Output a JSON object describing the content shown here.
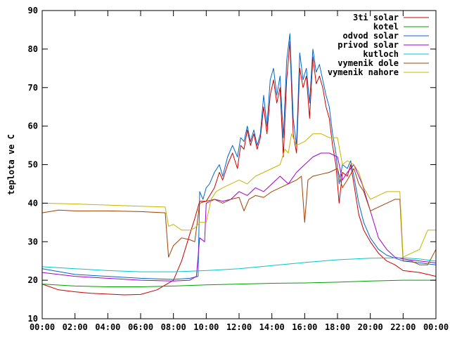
{
  "chart_data": {
    "type": "line",
    "title": "",
    "xlabel": "",
    "ylabel": "teplota ve C",
    "ylim": [
      10,
      90
    ],
    "yticks": [
      10,
      20,
      30,
      40,
      50,
      60,
      70,
      80,
      90
    ],
    "xlim": [
      0,
      24
    ],
    "xticks": [
      {
        "v": 0,
        "label": "00:00"
      },
      {
        "v": 2,
        "label": "02:00"
      },
      {
        "v": 4,
        "label": "04:00"
      },
      {
        "v": 6,
        "label": "06:00"
      },
      {
        "v": 8,
        "label": "08:00"
      },
      {
        "v": 10,
        "label": "10:00"
      },
      {
        "v": 12,
        "label": "12:00"
      },
      {
        "v": 14,
        "label": "14:00"
      },
      {
        "v": 16,
        "label": "16:00"
      },
      {
        "v": 18,
        "label": "18:00"
      },
      {
        "v": 20,
        "label": "20:00"
      },
      {
        "v": 22,
        "label": "22:00"
      },
      {
        "v": 24,
        "label": "00:00"
      }
    ],
    "grid": false,
    "legend_position": "top-right",
    "series": [
      {
        "name": "3ti solar",
        "color": "#cc0000",
        "points": [
          [
            0,
            19
          ],
          [
            1,
            17.5
          ],
          [
            2,
            17
          ],
          [
            3,
            16.6
          ],
          [
            4,
            16.4
          ],
          [
            5,
            16.2
          ],
          [
            6,
            16.3
          ],
          [
            7,
            17.5
          ],
          [
            8,
            20
          ],
          [
            8.5,
            25
          ],
          [
            9,
            32
          ],
          [
            9.3,
            36
          ],
          [
            9.6,
            40.5
          ],
          [
            10,
            40.5
          ],
          [
            10.5,
            44
          ],
          [
            10.8,
            48
          ],
          [
            11,
            46
          ],
          [
            11.3,
            50
          ],
          [
            11.6,
            53
          ],
          [
            11.9,
            49
          ],
          [
            12.1,
            55
          ],
          [
            12.3,
            54
          ],
          [
            12.5,
            59
          ],
          [
            12.7,
            55
          ],
          [
            12.9,
            58
          ],
          [
            13.1,
            54
          ],
          [
            13.3,
            57
          ],
          [
            13.5,
            65
          ],
          [
            13.7,
            58
          ],
          [
            13.9,
            68
          ],
          [
            14.1,
            72
          ],
          [
            14.3,
            66
          ],
          [
            14.5,
            70
          ],
          [
            14.7,
            52
          ],
          [
            14.9,
            72
          ],
          [
            15.1,
            82
          ],
          [
            15.3,
            58
          ],
          [
            15.5,
            53
          ],
          [
            15.7,
            75
          ],
          [
            15.9,
            70
          ],
          [
            16.1,
            73
          ],
          [
            16.3,
            62
          ],
          [
            16.5,
            78
          ],
          [
            16.7,
            71
          ],
          [
            16.9,
            73
          ],
          [
            17.1,
            70
          ],
          [
            17.3,
            65
          ],
          [
            17.5,
            62
          ],
          [
            17.7,
            55
          ],
          [
            17.9,
            50
          ],
          [
            18.1,
            40
          ],
          [
            18.3,
            48
          ],
          [
            18.6,
            47
          ],
          [
            18.8,
            50
          ],
          [
            19,
            45
          ],
          [
            19.3,
            37
          ],
          [
            19.6,
            33
          ],
          [
            20,
            30
          ],
          [
            20.5,
            27
          ],
          [
            21,
            25
          ],
          [
            21.5,
            24
          ],
          [
            22,
            22.5
          ],
          [
            23,
            22
          ],
          [
            24,
            21
          ]
        ]
      },
      {
        "name": "kotel",
        "color": "#00a000",
        "points": [
          [
            0,
            19
          ],
          [
            2,
            18.5
          ],
          [
            4,
            18.3
          ],
          [
            6,
            18.3
          ],
          [
            8,
            18.5
          ],
          [
            10,
            18.8
          ],
          [
            12,
            19
          ],
          [
            14,
            19.2
          ],
          [
            16,
            19.3
          ],
          [
            18,
            19.5
          ],
          [
            20,
            19.8
          ],
          [
            22,
            20
          ],
          [
            24,
            20
          ]
        ]
      },
      {
        "name": "odvod solar",
        "color": "#0066cc",
        "points": [
          [
            0,
            23
          ],
          [
            2,
            21.5
          ],
          [
            4,
            21
          ],
          [
            6,
            20.5
          ],
          [
            8,
            20.2
          ],
          [
            9,
            20.5
          ],
          [
            9.5,
            21
          ],
          [
            9.6,
            43
          ],
          [
            9.8,
            41
          ],
          [
            10,
            44
          ],
          [
            10.2,
            45
          ],
          [
            10.5,
            48
          ],
          [
            10.8,
            50
          ],
          [
            11,
            47
          ],
          [
            11.3,
            52
          ],
          [
            11.6,
            55
          ],
          [
            11.9,
            52
          ],
          [
            12.1,
            57
          ],
          [
            12.3,
            56
          ],
          [
            12.5,
            60
          ],
          [
            12.7,
            56
          ],
          [
            12.9,
            59
          ],
          [
            13.1,
            55
          ],
          [
            13.3,
            58
          ],
          [
            13.5,
            68
          ],
          [
            13.7,
            60
          ],
          [
            13.9,
            72
          ],
          [
            14.1,
            75
          ],
          [
            14.3,
            68
          ],
          [
            14.5,
            73
          ],
          [
            14.7,
            57
          ],
          [
            14.9,
            77
          ],
          [
            15.1,
            84
          ],
          [
            15.3,
            62
          ],
          [
            15.5,
            55
          ],
          [
            15.7,
            79
          ],
          [
            15.9,
            72
          ],
          [
            16.1,
            75
          ],
          [
            16.3,
            66
          ],
          [
            16.5,
            80
          ],
          [
            16.7,
            74
          ],
          [
            16.9,
            76
          ],
          [
            17.1,
            72
          ],
          [
            17.3,
            68
          ],
          [
            17.5,
            65
          ],
          [
            17.7,
            58
          ],
          [
            17.9,
            53
          ],
          [
            18.1,
            45
          ],
          [
            18.3,
            50
          ],
          [
            18.6,
            49
          ],
          [
            18.8,
            51
          ],
          [
            19,
            47
          ],
          [
            19.3,
            40
          ],
          [
            19.6,
            35
          ],
          [
            20,
            31
          ],
          [
            20.5,
            28
          ],
          [
            21,
            26.5
          ],
          [
            22,
            25
          ],
          [
            23,
            24.5
          ],
          [
            24,
            24
          ]
        ]
      },
      {
        "name": "privod solar",
        "color": "#a000d0",
        "points": [
          [
            0,
            22
          ],
          [
            2,
            21
          ],
          [
            4,
            20.5
          ],
          [
            6,
            20
          ],
          [
            8,
            19.8
          ],
          [
            9,
            20
          ],
          [
            9.4,
            21
          ],
          [
            9.6,
            31
          ],
          [
            9.9,
            30
          ],
          [
            10,
            40
          ],
          [
            10.5,
            41
          ],
          [
            11,
            40.5
          ],
          [
            11.5,
            41
          ],
          [
            12,
            43
          ],
          [
            12.5,
            42
          ],
          [
            13,
            44
          ],
          [
            13.5,
            43
          ],
          [
            14,
            45
          ],
          [
            14.5,
            47
          ],
          [
            15,
            45
          ],
          [
            15.5,
            48
          ],
          [
            16,
            50
          ],
          [
            16.5,
            52
          ],
          [
            17,
            53
          ],
          [
            17.5,
            53
          ],
          [
            18,
            52
          ],
          [
            18.3,
            46
          ],
          [
            18.6,
            48
          ],
          [
            19,
            50
          ],
          [
            19.5,
            45
          ],
          [
            20,
            38
          ],
          [
            20.5,
            31
          ],
          [
            21,
            28
          ],
          [
            21.5,
            26
          ],
          [
            22,
            25.5
          ],
          [
            23,
            25
          ],
          [
            24,
            24.5
          ]
        ]
      },
      {
        "name": "kutloch",
        "color": "#00c8c8",
        "points": [
          [
            0,
            23.5
          ],
          [
            2,
            23
          ],
          [
            4,
            22.5
          ],
          [
            6,
            22.2
          ],
          [
            8,
            22.2
          ],
          [
            10,
            22.5
          ],
          [
            12,
            23
          ],
          [
            14,
            23.8
          ],
          [
            16,
            24.6
          ],
          [
            18,
            25.3
          ],
          [
            20,
            25.7
          ],
          [
            22,
            25.8
          ],
          [
            23,
            25.5
          ],
          [
            24,
            25
          ]
        ]
      },
      {
        "name": "vymenik dole",
        "color": "#a04000",
        "points": [
          [
            0,
            37.5
          ],
          [
            1,
            38.2
          ],
          [
            2,
            38
          ],
          [
            4,
            38
          ],
          [
            6,
            37.8
          ],
          [
            7.5,
            37.5
          ],
          [
            7.7,
            26
          ],
          [
            8,
            29
          ],
          [
            8.5,
            31
          ],
          [
            9,
            30.5
          ],
          [
            9.3,
            30
          ],
          [
            9.6,
            40
          ],
          [
            10,
            40.5
          ],
          [
            10.5,
            41
          ],
          [
            11,
            40
          ],
          [
            11.5,
            41
          ],
          [
            12,
            41.5
          ],
          [
            12.3,
            38
          ],
          [
            12.6,
            41
          ],
          [
            13,
            42
          ],
          [
            13.5,
            41.5
          ],
          [
            14,
            43
          ],
          [
            14.5,
            44
          ],
          [
            15,
            45
          ],
          [
            15.5,
            46
          ],
          [
            15.8,
            47
          ],
          [
            16,
            35
          ],
          [
            16.2,
            46
          ],
          [
            16.5,
            47
          ],
          [
            17,
            47.5
          ],
          [
            17.5,
            48
          ],
          [
            18,
            49
          ],
          [
            18.3,
            44
          ],
          [
            18.6,
            46
          ],
          [
            19,
            49
          ],
          [
            19.3,
            45
          ],
          [
            19.6,
            43
          ],
          [
            20,
            38
          ],
          [
            20.5,
            39
          ],
          [
            21,
            40
          ],
          [
            21.5,
            41
          ],
          [
            21.8,
            41
          ],
          [
            22,
            25
          ],
          [
            22.5,
            25
          ],
          [
            23,
            24
          ],
          [
            23.5,
            24
          ],
          [
            24,
            28
          ]
        ]
      },
      {
        "name": "vymenik nahore",
        "color": "#c8b400",
        "points": [
          [
            0,
            40
          ],
          [
            2,
            39.8
          ],
          [
            4,
            39.5
          ],
          [
            6,
            39.2
          ],
          [
            7.5,
            39
          ],
          [
            7.7,
            34
          ],
          [
            8,
            34.5
          ],
          [
            8.5,
            33
          ],
          [
            9,
            33
          ],
          [
            9.3,
            33.5
          ],
          [
            9.6,
            35
          ],
          [
            10,
            35
          ],
          [
            10.3,
            41
          ],
          [
            10.6,
            43
          ],
          [
            11,
            44
          ],
          [
            11.5,
            45
          ],
          [
            12,
            46
          ],
          [
            12.5,
            45
          ],
          [
            13,
            47
          ],
          [
            13.5,
            48
          ],
          [
            14,
            49
          ],
          [
            14.5,
            50
          ],
          [
            14.8,
            54
          ],
          [
            15,
            53
          ],
          [
            15.2,
            58
          ],
          [
            15.5,
            55
          ],
          [
            16,
            56
          ],
          [
            16.5,
            58
          ],
          [
            17,
            58
          ],
          [
            17.5,
            57
          ],
          [
            18,
            57
          ],
          [
            18.3,
            50
          ],
          [
            18.6,
            51
          ],
          [
            19,
            50
          ],
          [
            19.3,
            48
          ],
          [
            19.6,
            44
          ],
          [
            20,
            41
          ],
          [
            20.5,
            42
          ],
          [
            21,
            43
          ],
          [
            21.5,
            43
          ],
          [
            21.8,
            43
          ],
          [
            22,
            26
          ],
          [
            22.5,
            27
          ],
          [
            23,
            28
          ],
          [
            23.5,
            33
          ],
          [
            24,
            33
          ]
        ]
      }
    ]
  }
}
